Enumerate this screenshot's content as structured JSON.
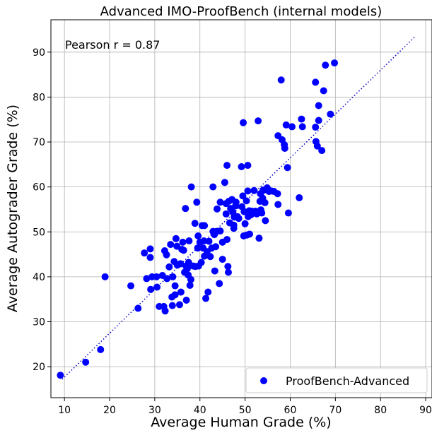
{
  "chart_data": {
    "type": "scatter",
    "title": "Advanced IMO-ProofBench (internal models)",
    "xlabel": "Average Human Grade (%)",
    "ylabel": "Average Autograder Grade (%)",
    "xlim": [
      7.0,
      91.4
    ],
    "ylim": [
      13.1,
      97.2
    ],
    "xticks": [
      10,
      20,
      30,
      40,
      50,
      60,
      70,
      80,
      90
    ],
    "yticks": [
      20,
      30,
      40,
      50,
      60,
      70,
      80,
      90
    ],
    "grid": true,
    "legend_position": "bottom-right",
    "annotation": "Pearson r = 0.87",
    "colors": {
      "points": "#0000ff",
      "fit_line": "#0000cc"
    },
    "fit_line": {
      "style": "dotted",
      "points": [
        [
          9.5,
          17.2
        ],
        [
          87.5,
          93.3
        ]
      ]
    },
    "series": [
      {
        "name": "ProofBench-Advanced",
        "points": [
          [
            9.1,
            18.1
          ],
          [
            14.7,
            21
          ],
          [
            18,
            23.8
          ],
          [
            19,
            40
          ],
          [
            24.7,
            38
          ],
          [
            26.3,
            33
          ],
          [
            27.7,
            45.3
          ],
          [
            28.2,
            39.6
          ],
          [
            29,
            46.2
          ],
          [
            29,
            44.3
          ],
          [
            29.1,
            37.2
          ],
          [
            29.4,
            40
          ],
          [
            30.4,
            40
          ],
          [
            30.5,
            37.7
          ],
          [
            31,
            33.4
          ],
          [
            31.7,
            40.3
          ],
          [
            32,
            33.4
          ],
          [
            32.2,
            45.8
          ],
          [
            32.3,
            32.4
          ],
          [
            32.6,
            44.9
          ],
          [
            32.7,
            39.6
          ],
          [
            33.2,
            42.2
          ],
          [
            33.5,
            47.2
          ],
          [
            33.8,
            35.5
          ],
          [
            33.9,
            33.6
          ],
          [
            34,
            40
          ],
          [
            34.3,
            43.4
          ],
          [
            34.5,
            36
          ],
          [
            34.5,
            38
          ],
          [
            34.7,
            48.5
          ],
          [
            34.9,
            46.8
          ],
          [
            35,
            42.6
          ],
          [
            35.5,
            33.8
          ],
          [
            35.7,
            42.9
          ],
          [
            35.8,
            36.6
          ],
          [
            36,
            46.1
          ],
          [
            36.2,
            47.7
          ],
          [
            36.4,
            45.9
          ],
          [
            36.6,
            41
          ],
          [
            36.8,
            55.2
          ],
          [
            36.9,
            42.4
          ],
          [
            37,
            34.8
          ],
          [
            37.2,
            41.8
          ],
          [
            37.4,
            40.4
          ],
          [
            37.5,
            43.2
          ],
          [
            37.6,
            48
          ],
          [
            37.8,
            38.1
          ],
          [
            38,
            39.4
          ],
          [
            38.1,
            60
          ],
          [
            38.5,
            42.4
          ],
          [
            38.9,
            51.9
          ],
          [
            39,
            42.3
          ],
          [
            39.3,
            56.6
          ],
          [
            39.5,
            46.4
          ],
          [
            39.6,
            49.1
          ],
          [
            39.7,
            42.4
          ],
          [
            40,
            47.7
          ],
          [
            40.3,
            43.2
          ],
          [
            40.5,
            51.4
          ],
          [
            40.7,
            46.4
          ],
          [
            40.9,
            48
          ],
          [
            41,
            44.6
          ],
          [
            41,
            51.4
          ],
          [
            41.3,
            35.2
          ],
          [
            41.6,
            45.6
          ],
          [
            41.8,
            36.6
          ],
          [
            42,
            47.9
          ],
          [
            42.3,
            44.5
          ],
          [
            42.6,
            46.4
          ],
          [
            42.9,
            50.1
          ],
          [
            42.9,
            60
          ],
          [
            43.2,
            49.4
          ],
          [
            43.3,
            41.3
          ],
          [
            43.5,
            46.7
          ],
          [
            43.7,
            50.1
          ],
          [
            43.8,
            55.1
          ],
          [
            44.3,
            38.5
          ],
          [
            44.5,
            56.6
          ],
          [
            44.5,
            50.2
          ],
          [
            45,
            47.7
          ],
          [
            45,
            43.9
          ],
          [
            45.5,
            61
          ],
          [
            45.8,
            56.3
          ],
          [
            45.8,
            54
          ],
          [
            46,
            64.8
          ],
          [
            46,
            48.3
          ],
          [
            46.2,
            42.3
          ],
          [
            46.3,
            41
          ],
          [
            46.4,
            56.8
          ],
          [
            46.6,
            52
          ],
          [
            46.8,
            55.2
          ],
          [
            47.1,
            57.2
          ],
          [
            47.3,
            54.4
          ],
          [
            47.5,
            50.8
          ],
          [
            47.5,
            51.5
          ],
          [
            47.6,
            53.3
          ],
          [
            47.9,
            55.8
          ],
          [
            48,
            56.6
          ],
          [
            48.3,
            53.4
          ],
          [
            48.6,
            53
          ],
          [
            49.2,
            64.5
          ],
          [
            49.3,
            55.6
          ],
          [
            49.5,
            58
          ],
          [
            49.6,
            74.3
          ],
          [
            49.7,
            49.1
          ],
          [
            49.8,
            54.5
          ],
          [
            50,
            51.8
          ],
          [
            50.3,
            56.9
          ],
          [
            50.4,
            49.3
          ],
          [
            50.6,
            64.8
          ],
          [
            50.6,
            59.1
          ],
          [
            50.7,
            53.4
          ],
          [
            50.9,
            54.7
          ],
          [
            51,
            49.5
          ],
          [
            51.3,
            53.8
          ],
          [
            51.5,
            54.6
          ],
          [
            52,
            59.2
          ],
          [
            52.3,
            54.6
          ],
          [
            52.6,
            54
          ],
          [
            52.9,
            74.7
          ],
          [
            53.1,
            48.6
          ],
          [
            53.3,
            56.8
          ],
          [
            53.4,
            58.5
          ],
          [
            53.5,
            54.9
          ],
          [
            53.7,
            54.2
          ],
          [
            53.9,
            57.5
          ],
          [
            54,
            59.3
          ],
          [
            54.2,
            59.3
          ],
          [
            54.4,
            56.5
          ],
          [
            54.5,
            52.5
          ],
          [
            54.9,
            59.8
          ],
          [
            55.3,
            59
          ],
          [
            55.8,
            59.1
          ],
          [
            56.4,
            59
          ],
          [
            57.2,
            58.5
          ],
          [
            57.3,
            56.1
          ],
          [
            57.3,
            71.4
          ],
          [
            58,
            83.8
          ],
          [
            58.2,
            70.5
          ],
          [
            58.7,
            69.4
          ],
          [
            58.8,
            68.6
          ],
          [
            59.1,
            73.8
          ],
          [
            59.4,
            64.3
          ],
          [
            59.6,
            54.2
          ],
          [
            60.4,
            73.4
          ],
          [
            62,
            57.6
          ],
          [
            62.5,
            75.1
          ],
          [
            62.7,
            73.4
          ],
          [
            65.6,
            83.3
          ],
          [
            65.6,
            73.3
          ],
          [
            65.7,
            70.1
          ],
          [
            66,
            69.1
          ],
          [
            66.3,
            78.1
          ],
          [
            66.3,
            74.8
          ],
          [
            67,
            68.1
          ],
          [
            67.4,
            81.4
          ],
          [
            67.8,
            87.1
          ],
          [
            68.9,
            76.2
          ],
          [
            69.8,
            87.6
          ]
        ]
      }
    ]
  }
}
